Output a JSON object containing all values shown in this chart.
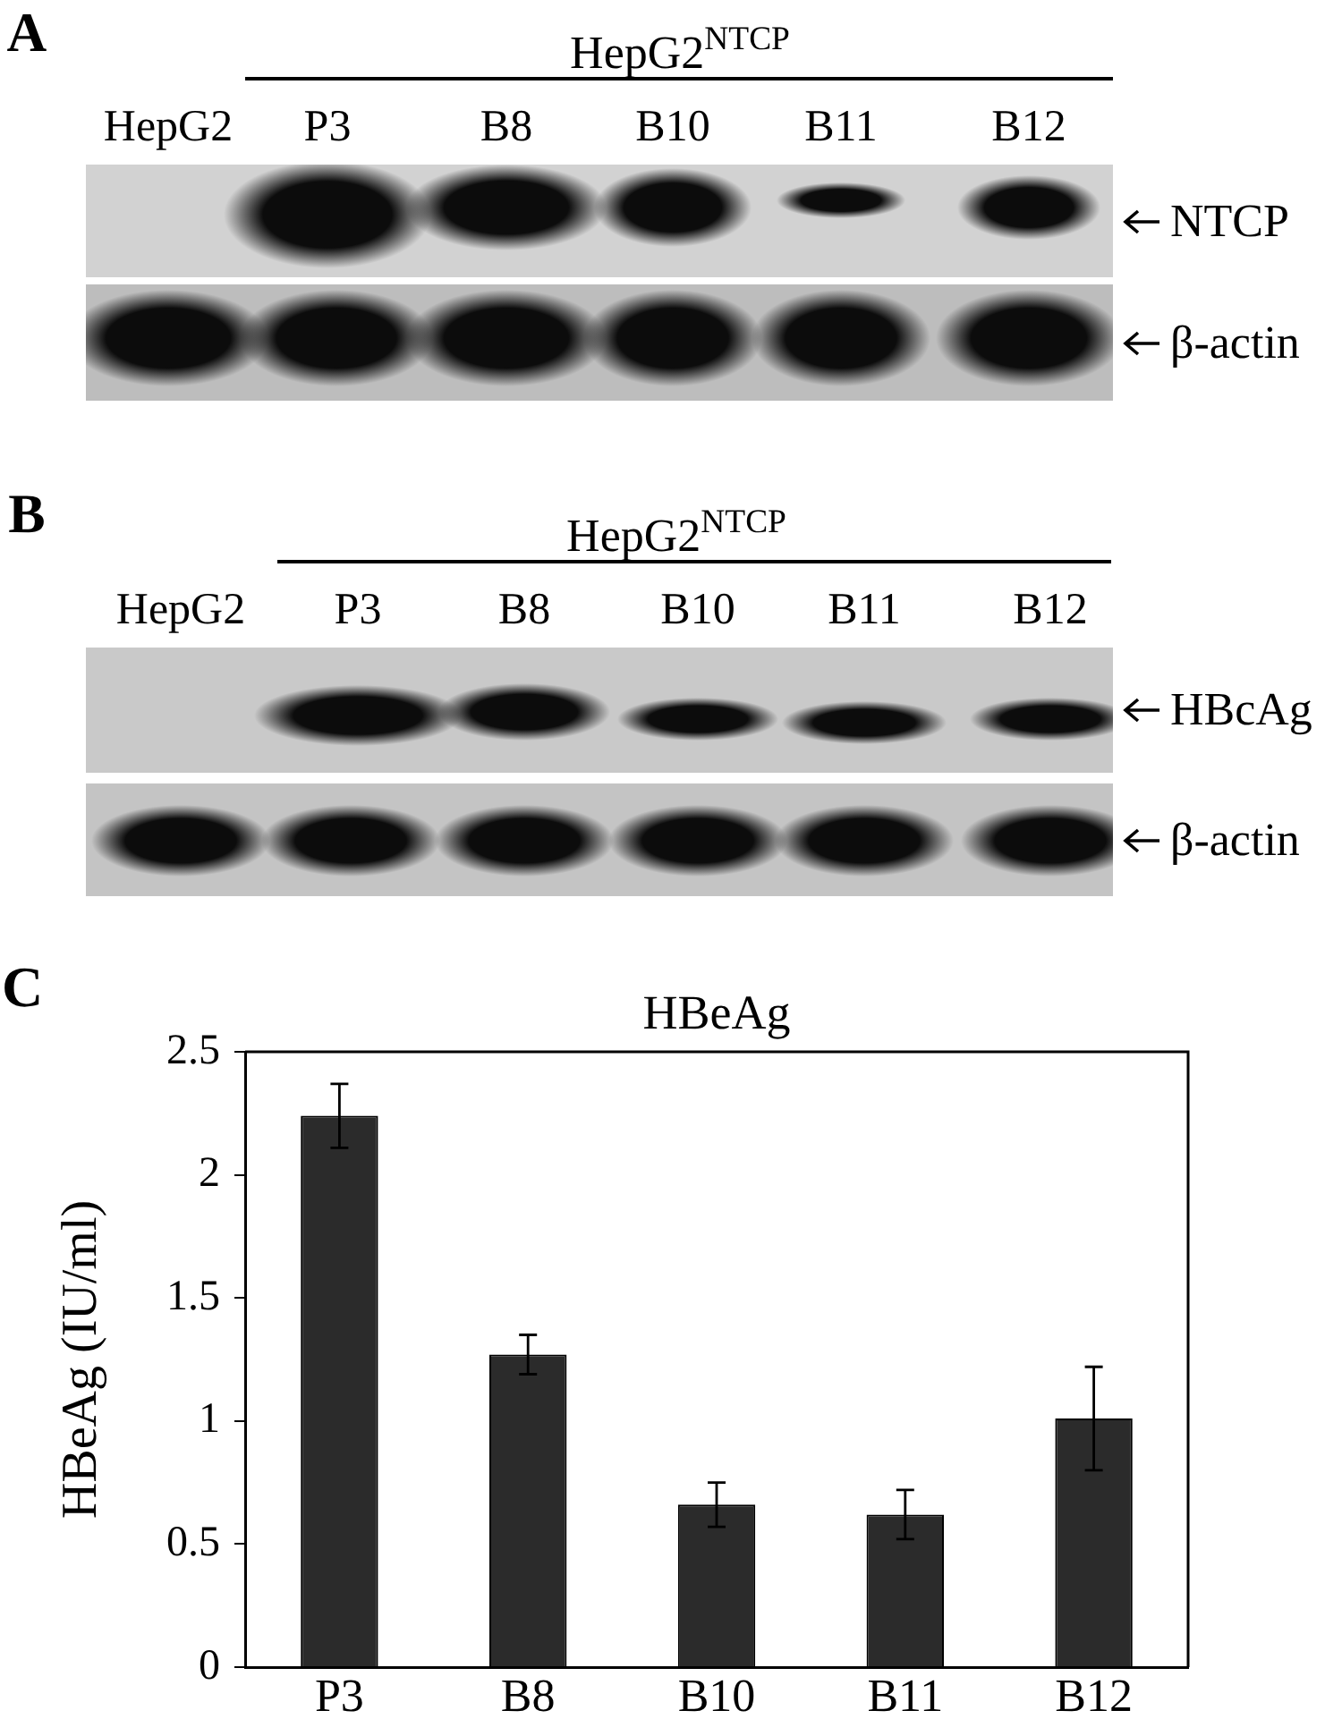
{
  "chart_data": [
    {
      "type": "other",
      "categories": [
        "HepG2",
        "P3",
        "B8",
        "B10",
        "B11",
        "B12"
      ],
      "annotations": [
        "A",
        "HepG2$^{NTCP}$",
        "NTCP",
        "β-actin"
      ]
    },
    {
      "type": "other",
      "categories": [
        "HepG2",
        "P3",
        "B8",
        "B10",
        "B11",
        "B12"
      ],
      "annotations": [
        "B",
        "HepG2$^{NTCP}$",
        "HBcAg",
        "β-actin"
      ]
    },
    {
      "type": "bar",
      "title": "HBeAg",
      "ylabel": "HBeAg (IU/ml)",
      "annotations": [
        "C"
      ],
      "categories": [
        "P3",
        "B8",
        "B10",
        "B11",
        "B12"
      ],
      "values": [
        2.24,
        1.27,
        0.66,
        0.62,
        1.01
      ],
      "errors": [
        0.13,
        0.08,
        0.09,
        0.1,
        0.21
      ],
      "color": "#2b2b2b",
      "ylim": [
        0,
        2.5
      ],
      "yticks": [
        0,
        0.5,
        1,
        1.5,
        2,
        2.5
      ]
    }
  ]
}
